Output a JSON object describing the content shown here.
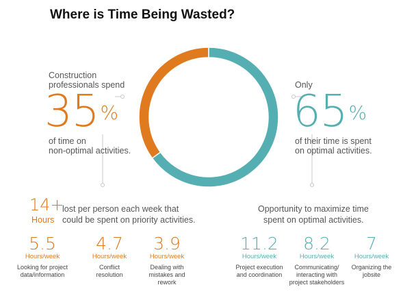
{
  "title": "Where is Time Being Wasted?",
  "colors": {
    "orange": "#e07a1f",
    "teal": "#55aeb2",
    "connector": "#c8c8c8"
  },
  "left_stat": {
    "intro_line1": "Construction",
    "intro_line2": "professionals spend",
    "value": "35",
    "unit": "%",
    "tail_line1": "of time on",
    "tail_line2": "non-optimal activities."
  },
  "right_stat": {
    "intro": "Only",
    "value": "65",
    "unit": "%",
    "tail_line1": "of their time is spent",
    "tail_line2": "on optimal activities."
  },
  "hours_block": {
    "value": "14+",
    "unit": "Hours",
    "line1": "lost per person each week that",
    "line2": "could be spent on priority activities."
  },
  "opportunity": {
    "line1": "Opportunity to maximize time",
    "line2": "spent on optimal activities."
  },
  "left_metrics": [
    {
      "value": "5.5",
      "unit": "Hours/week",
      "desc": [
        "Looking for project",
        "data/information"
      ]
    },
    {
      "value": "4.7",
      "unit": "Hours/week",
      "desc": [
        "Conflict",
        "resolution"
      ]
    },
    {
      "value": "3.9",
      "unit": "Hours/week",
      "desc": [
        "Dealing with",
        "mistakes and",
        "rework"
      ]
    }
  ],
  "right_metrics": [
    {
      "value": "11.2",
      "unit": "Hours/week",
      "desc": [
        "Project execution",
        "and coordination"
      ]
    },
    {
      "value": "8.2",
      "unit": "Hours/week",
      "desc": [
        "Communicating/",
        "interacting with",
        "project stakeholders"
      ]
    },
    {
      "value": "7",
      "unit": "Hours/week",
      "desc": [
        "Organizing the",
        "jobsite"
      ]
    }
  ],
  "chart_data": {
    "type": "pie",
    "style": "donut",
    "categories": [
      "non-optimal activities",
      "optimal activities"
    ],
    "values": [
      35,
      65
    ],
    "colors": [
      "#e07a1f",
      "#55aeb2"
    ]
  }
}
